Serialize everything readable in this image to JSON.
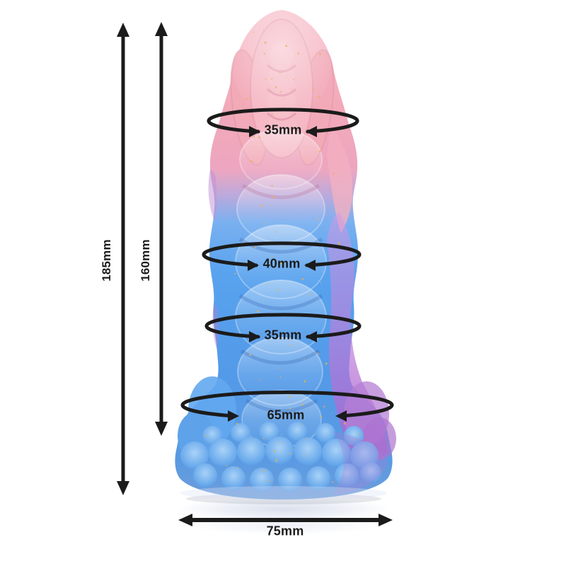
{
  "diagram": {
    "type": "product-dimension-diagram",
    "measurements": {
      "total_length": "185mm",
      "insertable_length": "160mm",
      "upper_girth": "35mm",
      "mid_girth": "40mm",
      "lower_girth": "35mm",
      "base_girth": "65mm",
      "base_width": "75mm"
    },
    "colors": {
      "annotation": "#1b1b1b",
      "tip_pink": "#f2a9b8",
      "body_blue": "#57a2ed",
      "accent_purple": "#b77bd2",
      "glitter_gold": "#e6b14e",
      "background": "#ffffff"
    }
  }
}
